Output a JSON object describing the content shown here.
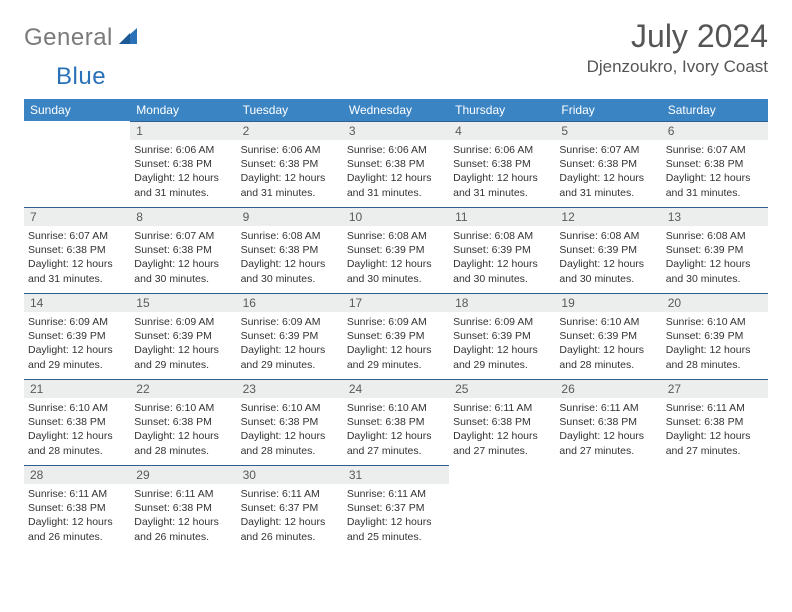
{
  "brand": {
    "part1": "General",
    "part2": "Blue"
  },
  "title": "July 2024",
  "location": "Djenzoukro, Ivory Coast",
  "colors": {
    "header_bg": "#3b84c4",
    "header_text": "#ffffff",
    "daynum_bg": "#eceded",
    "rule": "#2f5f8f",
    "logo_gray": "#7a7a7a",
    "logo_blue": "#2a71b8",
    "title_color": "#555555",
    "body_text": "#333333"
  },
  "fonts": {
    "title_size_pt": 24,
    "location_size_pt": 13,
    "header_size_pt": 9,
    "daynum_size_pt": 9,
    "body_size_pt": 8
  },
  "dayHeaders": [
    "Sunday",
    "Monday",
    "Tuesday",
    "Wednesday",
    "Thursday",
    "Friday",
    "Saturday"
  ],
  "weeks": [
    [
      null,
      {
        "n": "1",
        "sunrise": "Sunrise: 6:06 AM",
        "sunset": "Sunset: 6:38 PM",
        "daylight": "Daylight: 12 hours and 31 minutes."
      },
      {
        "n": "2",
        "sunrise": "Sunrise: 6:06 AM",
        "sunset": "Sunset: 6:38 PM",
        "daylight": "Daylight: 12 hours and 31 minutes."
      },
      {
        "n": "3",
        "sunrise": "Sunrise: 6:06 AM",
        "sunset": "Sunset: 6:38 PM",
        "daylight": "Daylight: 12 hours and 31 minutes."
      },
      {
        "n": "4",
        "sunrise": "Sunrise: 6:06 AM",
        "sunset": "Sunset: 6:38 PM",
        "daylight": "Daylight: 12 hours and 31 minutes."
      },
      {
        "n": "5",
        "sunrise": "Sunrise: 6:07 AM",
        "sunset": "Sunset: 6:38 PM",
        "daylight": "Daylight: 12 hours and 31 minutes."
      },
      {
        "n": "6",
        "sunrise": "Sunrise: 6:07 AM",
        "sunset": "Sunset: 6:38 PM",
        "daylight": "Daylight: 12 hours and 31 minutes."
      }
    ],
    [
      {
        "n": "7",
        "sunrise": "Sunrise: 6:07 AM",
        "sunset": "Sunset: 6:38 PM",
        "daylight": "Daylight: 12 hours and 31 minutes."
      },
      {
        "n": "8",
        "sunrise": "Sunrise: 6:07 AM",
        "sunset": "Sunset: 6:38 PM",
        "daylight": "Daylight: 12 hours and 30 minutes."
      },
      {
        "n": "9",
        "sunrise": "Sunrise: 6:08 AM",
        "sunset": "Sunset: 6:38 PM",
        "daylight": "Daylight: 12 hours and 30 minutes."
      },
      {
        "n": "10",
        "sunrise": "Sunrise: 6:08 AM",
        "sunset": "Sunset: 6:39 PM",
        "daylight": "Daylight: 12 hours and 30 minutes."
      },
      {
        "n": "11",
        "sunrise": "Sunrise: 6:08 AM",
        "sunset": "Sunset: 6:39 PM",
        "daylight": "Daylight: 12 hours and 30 minutes."
      },
      {
        "n": "12",
        "sunrise": "Sunrise: 6:08 AM",
        "sunset": "Sunset: 6:39 PM",
        "daylight": "Daylight: 12 hours and 30 minutes."
      },
      {
        "n": "13",
        "sunrise": "Sunrise: 6:08 AM",
        "sunset": "Sunset: 6:39 PM",
        "daylight": "Daylight: 12 hours and 30 minutes."
      }
    ],
    [
      {
        "n": "14",
        "sunrise": "Sunrise: 6:09 AM",
        "sunset": "Sunset: 6:39 PM",
        "daylight": "Daylight: 12 hours and 29 minutes."
      },
      {
        "n": "15",
        "sunrise": "Sunrise: 6:09 AM",
        "sunset": "Sunset: 6:39 PM",
        "daylight": "Daylight: 12 hours and 29 minutes."
      },
      {
        "n": "16",
        "sunrise": "Sunrise: 6:09 AM",
        "sunset": "Sunset: 6:39 PM",
        "daylight": "Daylight: 12 hours and 29 minutes."
      },
      {
        "n": "17",
        "sunrise": "Sunrise: 6:09 AM",
        "sunset": "Sunset: 6:39 PM",
        "daylight": "Daylight: 12 hours and 29 minutes."
      },
      {
        "n": "18",
        "sunrise": "Sunrise: 6:09 AM",
        "sunset": "Sunset: 6:39 PM",
        "daylight": "Daylight: 12 hours and 29 minutes."
      },
      {
        "n": "19",
        "sunrise": "Sunrise: 6:10 AM",
        "sunset": "Sunset: 6:39 PM",
        "daylight": "Daylight: 12 hours and 28 minutes."
      },
      {
        "n": "20",
        "sunrise": "Sunrise: 6:10 AM",
        "sunset": "Sunset: 6:39 PM",
        "daylight": "Daylight: 12 hours and 28 minutes."
      }
    ],
    [
      {
        "n": "21",
        "sunrise": "Sunrise: 6:10 AM",
        "sunset": "Sunset: 6:38 PM",
        "daylight": "Daylight: 12 hours and 28 minutes."
      },
      {
        "n": "22",
        "sunrise": "Sunrise: 6:10 AM",
        "sunset": "Sunset: 6:38 PM",
        "daylight": "Daylight: 12 hours and 28 minutes."
      },
      {
        "n": "23",
        "sunrise": "Sunrise: 6:10 AM",
        "sunset": "Sunset: 6:38 PM",
        "daylight": "Daylight: 12 hours and 28 minutes."
      },
      {
        "n": "24",
        "sunrise": "Sunrise: 6:10 AM",
        "sunset": "Sunset: 6:38 PM",
        "daylight": "Daylight: 12 hours and 27 minutes."
      },
      {
        "n": "25",
        "sunrise": "Sunrise: 6:11 AM",
        "sunset": "Sunset: 6:38 PM",
        "daylight": "Daylight: 12 hours and 27 minutes."
      },
      {
        "n": "26",
        "sunrise": "Sunrise: 6:11 AM",
        "sunset": "Sunset: 6:38 PM",
        "daylight": "Daylight: 12 hours and 27 minutes."
      },
      {
        "n": "27",
        "sunrise": "Sunrise: 6:11 AM",
        "sunset": "Sunset: 6:38 PM",
        "daylight": "Daylight: 12 hours and 27 minutes."
      }
    ],
    [
      {
        "n": "28",
        "sunrise": "Sunrise: 6:11 AM",
        "sunset": "Sunset: 6:38 PM",
        "daylight": "Daylight: 12 hours and 26 minutes."
      },
      {
        "n": "29",
        "sunrise": "Sunrise: 6:11 AM",
        "sunset": "Sunset: 6:38 PM",
        "daylight": "Daylight: 12 hours and 26 minutes."
      },
      {
        "n": "30",
        "sunrise": "Sunrise: 6:11 AM",
        "sunset": "Sunset: 6:37 PM",
        "daylight": "Daylight: 12 hours and 26 minutes."
      },
      {
        "n": "31",
        "sunrise": "Sunrise: 6:11 AM",
        "sunset": "Sunset: 6:37 PM",
        "daylight": "Daylight: 12 hours and 25 minutes."
      },
      null,
      null,
      null
    ]
  ]
}
